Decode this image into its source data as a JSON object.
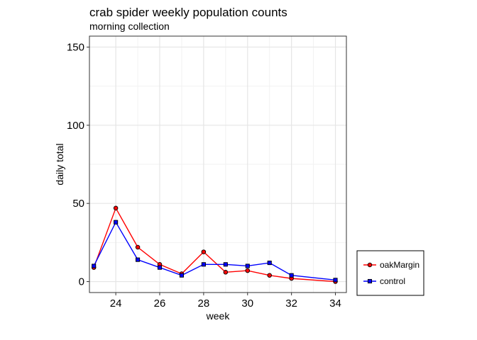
{
  "chart_data": {
    "type": "line",
    "title": "crab spider weekly population counts",
    "subtitle": "morning collection",
    "xlabel": "week",
    "ylabel": "daily total",
    "xlim": [
      22.8,
      34.5
    ],
    "ylim": [
      -7,
      157
    ],
    "x_ticks": [
      24,
      26,
      28,
      30,
      32,
      34
    ],
    "y_ticks": [
      0,
      50,
      100,
      150
    ],
    "grid": true,
    "legend_position": "bottom-right",
    "x": [
      23,
      24,
      25,
      26,
      27,
      28,
      29,
      30,
      31,
      32,
      34
    ],
    "series": [
      {
        "name": "oakMargin",
        "color": "#ff0000",
        "marker": "circle",
        "values": [
          9,
          47,
          22,
          11,
          5,
          19,
          6,
          7,
          4,
          2,
          0
        ]
      },
      {
        "name": "control",
        "color": "#0000ff",
        "marker": "square",
        "values": [
          10,
          38,
          14,
          9,
          4,
          11,
          11,
          10,
          12,
          4,
          1
        ]
      }
    ]
  }
}
